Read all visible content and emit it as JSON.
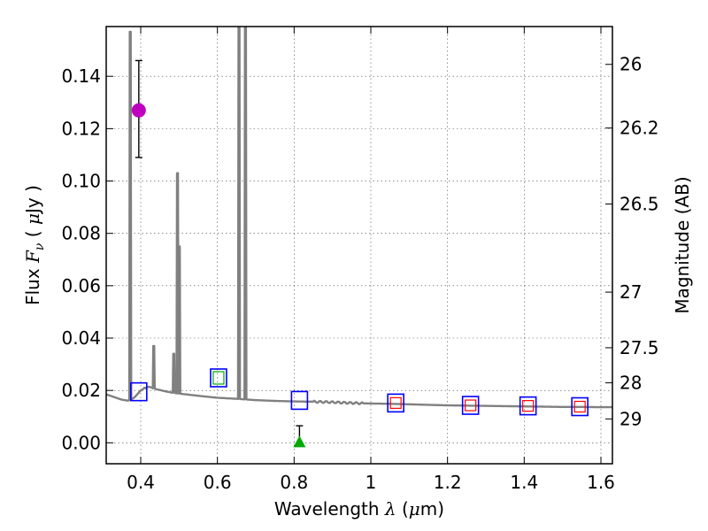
{
  "chart_data": {
    "type": "line",
    "x_axis": {
      "label": "Wavelength",
      "symbol": "λ",
      "unit_prefix": "(",
      "unit_mu": "μ",
      "unit_rest": "m)",
      "range": [
        0.31,
        1.63
      ],
      "ticks": [
        0.4,
        0.6,
        0.8,
        1.0,
        1.2,
        1.4,
        1.6
      ],
      "tick_labels": [
        "0.4",
        "0.6",
        "0.8",
        "1",
        "1.2",
        "1.4",
        "1.6"
      ]
    },
    "y_axis": {
      "label": "Flux",
      "symbol_main": "F",
      "symbol_sub": "ν",
      "unit_prefix": "(",
      "unit_mu": "μ",
      "unit_rest": "Jy )",
      "range": [
        -0.008,
        0.159
      ],
      "ticks": [
        0.0,
        0.02,
        0.04,
        0.06,
        0.08,
        0.1,
        0.12,
        0.14
      ],
      "tick_labels": [
        "0.00",
        "0.02",
        "0.04",
        "0.06",
        "0.08",
        "0.10",
        "0.12",
        "0.14"
      ]
    },
    "y2_axis": {
      "label": "Magnitude (AB)",
      "ticks": [
        26,
        26.2,
        26.5,
        27,
        27.5,
        28,
        29
      ],
      "tick_labels": [
        "26",
        "26.2",
        "26.5",
        "27",
        "27.5",
        "28",
        "29"
      ]
    },
    "grid": true,
    "colors": {
      "sed": "#808080",
      "model_box": "#0000ff",
      "band_green": "#00aa00",
      "band_red": "#ff0000",
      "measured": "#bf00bf",
      "upper_limit": "#00aa00",
      "errorbar": "#000000",
      "grid": "#b0b0b0"
    },
    "sed_continuum": [
      [
        0.31,
        0.0185
      ],
      [
        0.33,
        0.0175
      ],
      [
        0.35,
        0.0165
      ],
      [
        0.37,
        0.016
      ],
      [
        0.385,
        0.0175
      ],
      [
        0.4,
        0.02
      ],
      [
        0.42,
        0.0215
      ],
      [
        0.44,
        0.0205
      ],
      [
        0.46,
        0.0198
      ],
      [
        0.48,
        0.0192
      ],
      [
        0.5,
        0.0188
      ],
      [
        0.53,
        0.0183
      ],
      [
        0.56,
        0.0178
      ],
      [
        0.6,
        0.0172
      ],
      [
        0.65,
        0.0168
      ],
      [
        0.7,
        0.0163
      ],
      [
        0.75,
        0.016
      ],
      [
        0.8,
        0.0158
      ],
      [
        0.85,
        0.0157
      ],
      [
        0.9,
        0.0155
      ],
      [
        0.95,
        0.0152
      ],
      [
        1.0,
        0.015
      ],
      [
        1.05,
        0.0149
      ],
      [
        1.1,
        0.0147
      ],
      [
        1.15,
        0.0145
      ],
      [
        1.2,
        0.0143
      ],
      [
        1.25,
        0.0142
      ],
      [
        1.3,
        0.0141
      ],
      [
        1.35,
        0.014
      ],
      [
        1.4,
        0.0139
      ],
      [
        1.45,
        0.0138
      ],
      [
        1.5,
        0.0137
      ],
      [
        1.55,
        0.0137
      ],
      [
        1.6,
        0.0136
      ],
      [
        1.63,
        0.0136
      ]
    ],
    "emission_lines": [
      {
        "x": 0.3727,
        "peak": 0.157
      },
      {
        "x": 0.4102,
        "peak": 0.021
      },
      {
        "x": 0.434,
        "peak": 0.037
      },
      {
        "x": 0.4861,
        "peak": 0.034
      },
      {
        "x": 0.4959,
        "peak": 0.103
      },
      {
        "x": 0.5007,
        "peak": 0.075
      },
      {
        "x": 0.6563,
        "peak": 0.165
      },
      {
        "x": 0.6731,
        "peak": 0.165
      }
    ],
    "model_bands": [
      {
        "x": 0.395,
        "y": 0.0195,
        "inner": "none"
      },
      {
        "x": 0.603,
        "y": 0.0248,
        "inner": "green"
      },
      {
        "x": 0.814,
        "y": 0.0162,
        "inner": "none"
      },
      {
        "x": 1.065,
        "y": 0.0152,
        "inner": "red"
      },
      {
        "x": 1.26,
        "y": 0.0143,
        "inner": "red"
      },
      {
        "x": 1.41,
        "y": 0.0141,
        "inner": "red"
      },
      {
        "x": 1.545,
        "y": 0.0138,
        "inner": "red"
      }
    ],
    "detections": [
      {
        "x": 0.395,
        "y": 0.127,
        "err_low": 0.109,
        "err_high": 0.146,
        "marker": "circle"
      }
    ],
    "upper_limits": [
      {
        "x": 0.814,
        "y": 0.0,
        "err_low": 0.0,
        "err_high": 0.0065,
        "marker": "triangle"
      }
    ]
  }
}
